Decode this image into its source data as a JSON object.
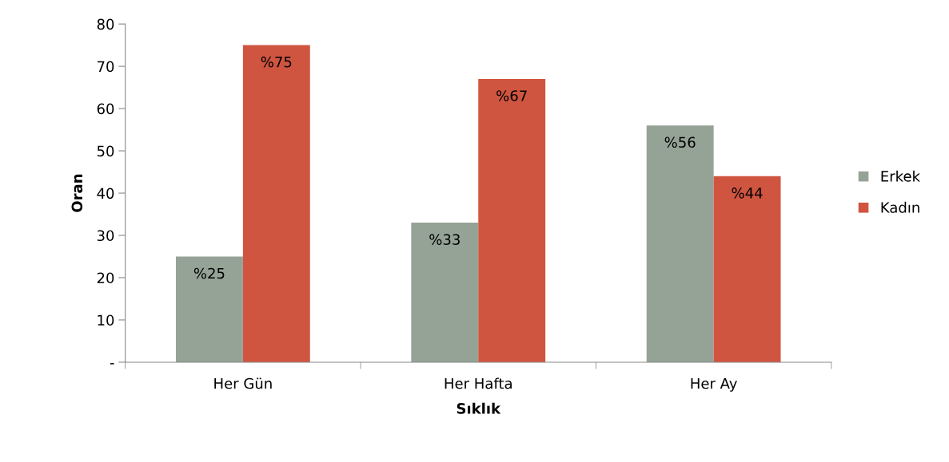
{
  "chart_data": {
    "type": "bar",
    "xlabel": "Sıklık",
    "ylabel": "Oran",
    "categories": [
      "Her Gün",
      "Her Hafta",
      "Her Ay"
    ],
    "series": [
      {
        "name": "Erkek",
        "color": "#95a397",
        "values": [
          25,
          33,
          56
        ],
        "value_labels": [
          "%25",
          "%33",
          "%56"
        ]
      },
      {
        "name": "Kadın",
        "color": "#d05540",
        "values": [
          75,
          67,
          44
        ],
        "value_labels": [
          "%75",
          "%67",
          "%44"
        ]
      }
    ],
    "ylim": [
      0,
      80
    ],
    "yticks": [
      {
        "value": 0,
        "label": "-"
      },
      10,
      20,
      30,
      40,
      50,
      60,
      70,
      80
    ],
    "grid": false,
    "legend": "right"
  }
}
